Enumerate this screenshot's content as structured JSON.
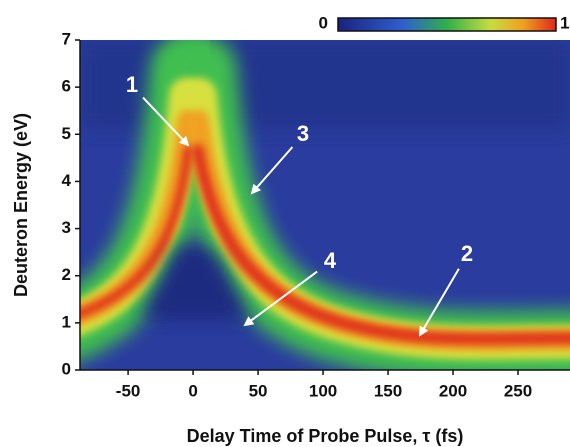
{
  "chart_data": {
    "type": "heatmap",
    "x_label": "Delay Time of Probe Pulse, τ  (fs)",
    "y_label": "Deuteron Energy (eV)",
    "xlim": [
      -87,
      290
    ],
    "xticks": [
      -50,
      0,
      50,
      100,
      150,
      200,
      250
    ],
    "ylim": [
      0,
      7
    ],
    "yticks": [
      0,
      1,
      2,
      3,
      4,
      5,
      6,
      7
    ],
    "colorbar_ticks": [
      0,
      1
    ],
    "annotations": [
      "1",
      "2",
      "3",
      "4"
    ]
  }
}
